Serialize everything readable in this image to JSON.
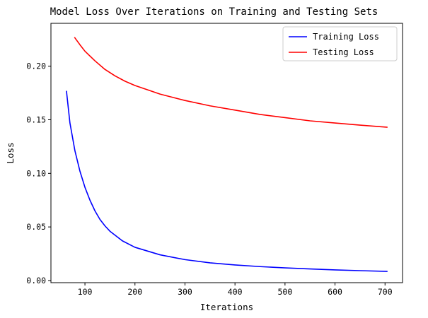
{
  "chart_data": {
    "type": "line",
    "title": "Model Loss Over Iterations on Training and Testing Sets",
    "xlabel": "Iterations",
    "ylabel": "Loss",
    "xlim": [
      32,
      735
    ],
    "ylim": [
      -0.002,
      0.24
    ],
    "xticks": [
      100,
      200,
      300,
      400,
      500,
      600,
      700
    ],
    "xtick_labels": [
      "100",
      "200",
      "300",
      "400",
      "500",
      "600",
      "700"
    ],
    "yticks": [
      0.0,
      0.05,
      0.1,
      0.15,
      0.2
    ],
    "ytick_labels": [
      "0.00",
      "0.05",
      "0.10",
      "0.15",
      "0.20"
    ],
    "grid": false,
    "legend_position": "top-right",
    "series": [
      {
        "name": "Training Loss",
        "color": "#0000ff",
        "x": [
          63,
          70,
          80,
          90,
          100,
          110,
          120,
          130,
          140,
          150,
          175,
          200,
          250,
          300,
          350,
          400,
          450,
          500,
          550,
          600,
          650,
          705
        ],
        "y": [
          0.177,
          0.147,
          0.121,
          0.102,
          0.087,
          0.075,
          0.065,
          0.057,
          0.051,
          0.046,
          0.037,
          0.031,
          0.024,
          0.0195,
          0.0165,
          0.0145,
          0.013,
          0.0118,
          0.0108,
          0.0099,
          0.0092,
          0.0085
        ]
      },
      {
        "name": "Testing Loss",
        "color": "#ff0000",
        "x": [
          79,
          90,
          100,
          120,
          140,
          160,
          180,
          200,
          250,
          300,
          350,
          400,
          450,
          500,
          550,
          600,
          650,
          705
        ],
        "y": [
          0.227,
          0.22,
          0.214,
          0.205,
          0.197,
          0.191,
          0.186,
          0.182,
          0.174,
          0.168,
          0.163,
          0.159,
          0.155,
          0.152,
          0.149,
          0.147,
          0.145,
          0.143
        ]
      }
    ]
  }
}
